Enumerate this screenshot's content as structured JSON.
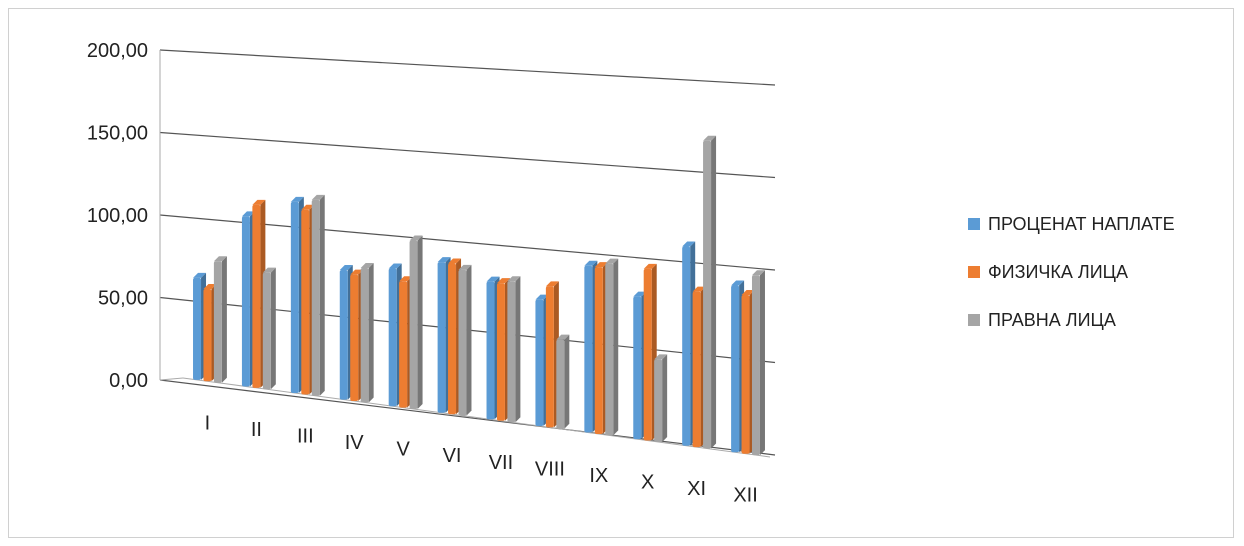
{
  "chart_data": {
    "type": "bar",
    "categories": [
      "I",
      "II",
      "III",
      "IV",
      "V",
      "VI",
      "VII",
      "VIII",
      "IX",
      "X",
      "XI",
      "XII"
    ],
    "series": [
      {
        "name": "ПРОЦЕНАТ НАПЛАТЕ",
        "color": "#5b9bd5",
        "values": [
          63,
          105,
          118,
          80,
          85,
          93,
          85,
          78,
          103,
          88,
          123,
          103
        ]
      },
      {
        "name": "ФИЗИЧКА ЛИЦА",
        "color": "#ed7d31",
        "values": [
          57,
          113,
          114,
          78,
          78,
          93,
          85,
          87,
          103,
          106,
          96,
          98
        ]
      },
      {
        "name": "ПРАВНА ЛИЦА",
        "color": "#a5a5a5",
        "values": [
          75,
          72,
          121,
          83,
          104,
          90,
          87,
          55,
          106,
          51,
          190,
          111
        ]
      }
    ],
    "ylim": [
      0,
      200
    ],
    "ytick_labels": [
      "0,00",
      "50,00",
      "100,00",
      "150,00",
      "200,00"
    ],
    "grid": true,
    "legend_position": "right",
    "title": "",
    "xlabel": "",
    "ylabel": ""
  }
}
